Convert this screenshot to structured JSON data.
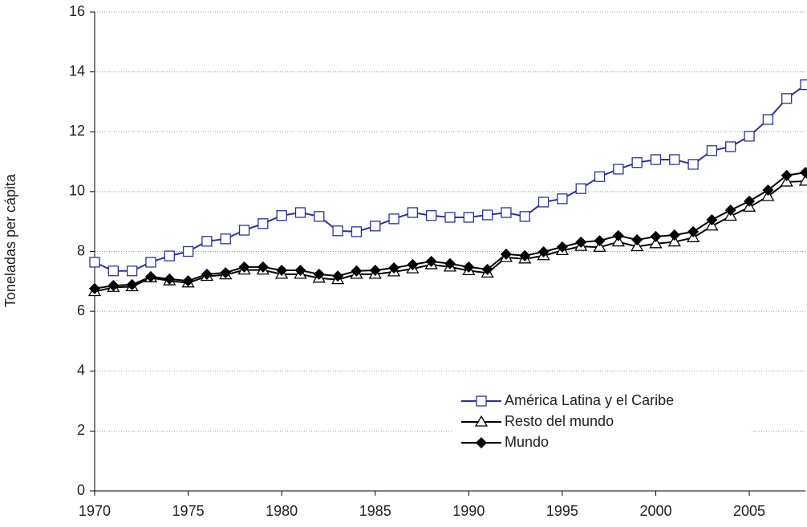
{
  "chart_data": {
    "type": "line",
    "y_label": "Toneladas per cápita",
    "x": [
      1970,
      1971,
      1972,
      1973,
      1974,
      1975,
      1976,
      1977,
      1978,
      1979,
      1980,
      1981,
      1982,
      1983,
      1984,
      1985,
      1986,
      1987,
      1988,
      1989,
      1990,
      1991,
      1992,
      1993,
      1994,
      1995,
      1996,
      1997,
      1998,
      1999,
      2000,
      2001,
      2002,
      2003,
      2004,
      2005,
      2006,
      2007,
      2008
    ],
    "xlim": [
      1970,
      2008
    ],
    "xticks": [
      1970,
      1975,
      1980,
      1985,
      1990,
      1995,
      2000,
      2005
    ],
    "ylim": [
      0,
      16
    ],
    "yticks": [
      0,
      2,
      4,
      6,
      8,
      10,
      12,
      14,
      16
    ],
    "grid": true,
    "series": [
      {
        "name": "América Latina y el Caribe",
        "color": "#2e3192",
        "marker": "square",
        "values": [
          7.64,
          7.35,
          7.35,
          7.64,
          7.85,
          8.0,
          8.34,
          8.42,
          8.71,
          8.93,
          9.2,
          9.3,
          9.17,
          8.69,
          8.66,
          8.85,
          9.09,
          9.3,
          9.2,
          9.14,
          9.14,
          9.22,
          9.3,
          9.17,
          9.65,
          9.76,
          10.1,
          10.5,
          10.75,
          10.97,
          11.07,
          11.07,
          10.91,
          11.37,
          11.5,
          11.85,
          12.41,
          13.11,
          13.57
        ]
      },
      {
        "name": "Resto del mundo",
        "color": "#000000",
        "marker": "triangle",
        "values": [
          6.66,
          6.8,
          6.82,
          7.12,
          7.02,
          6.95,
          7.17,
          7.22,
          7.38,
          7.38,
          7.24,
          7.24,
          7.11,
          7.06,
          7.24,
          7.24,
          7.32,
          7.42,
          7.56,
          7.48,
          7.36,
          7.28,
          7.8,
          7.75,
          7.86,
          8.03,
          8.17,
          8.14,
          8.32,
          8.16,
          8.26,
          8.32,
          8.46,
          8.85,
          9.18,
          9.48,
          9.84,
          10.32,
          10.35
        ]
      },
      {
        "name": "Mundo",
        "color": "#000000",
        "marker": "diamond",
        "values": [
          6.76,
          6.86,
          6.89,
          7.16,
          7.08,
          7.02,
          7.24,
          7.29,
          7.48,
          7.48,
          7.37,
          7.37,
          7.24,
          7.18,
          7.35,
          7.37,
          7.45,
          7.56,
          7.67,
          7.59,
          7.48,
          7.4,
          7.91,
          7.86,
          7.99,
          8.15,
          8.31,
          8.36,
          8.53,
          8.39,
          8.5,
          8.55,
          8.66,
          9.06,
          9.38,
          9.68,
          10.05,
          10.54,
          10.64
        ]
      }
    ]
  }
}
